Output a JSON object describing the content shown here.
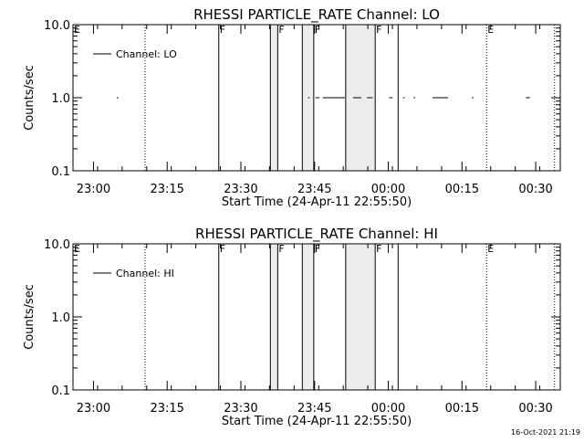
{
  "footer": {
    "timestamp": "16-Oct-2021 21:19"
  },
  "chart_data": [
    {
      "type": "line",
      "title": "RHESSI PARTICLE_RATE Channel: LO",
      "xlabel": "Start Time (24-Apr-11 22:55:50)",
      "ylabel": "Counts/sec",
      "x_ticks": [
        "23:00",
        "23:15",
        "23:30",
        "23:45",
        "00:00",
        "00:15",
        "00:30"
      ],
      "x_range": [
        "22:55:50",
        "00:35:00"
      ],
      "y_ticks": [
        "0.1",
        "1.0",
        "10.0"
      ],
      "ylim": [
        0.1,
        10
      ],
      "y_scale": "log",
      "legend": {
        "entries": [
          "Channel: LO"
        ],
        "position": "top-left"
      },
      "series": [
        {
          "name": "Channel: LO",
          "segments": [
            {
              "x": [
                "23:04:45",
                "23:05:05"
              ],
              "y": 1.0
            },
            {
              "x": [
                "23:43:40",
                "23:44:00"
              ],
              "y": 1.0
            },
            {
              "x": [
                "23:45:10",
                "23:46:00"
              ],
              "y": 1.0
            },
            {
              "x": [
                "23:46:40",
                "23:51:10"
              ],
              "y": 1.0
            },
            {
              "x": [
                "23:52:50",
                "23:54:30"
              ],
              "y": 1.0
            },
            {
              "x": [
                "23:55:40",
                "23:56:50"
              ],
              "y": 1.0
            },
            {
              "x": [
                "00:00:10",
                "00:00:50"
              ],
              "y": 1.0
            },
            {
              "x": [
                "00:03:00",
                "00:03:20"
              ],
              "y": 1.0
            },
            {
              "x": [
                "00:05:10",
                "00:05:30"
              ],
              "y": 1.0
            },
            {
              "x": [
                "00:09:00",
                "00:12:10"
              ],
              "y": 1.0
            },
            {
              "x": [
                "00:17:00",
                "00:17:20"
              ],
              "y": 1.0
            },
            {
              "x": [
                "00:28:00",
                "00:28:50"
              ],
              "y": 1.0
            }
          ]
        }
      ],
      "markers": [
        {
          "time": "23:10:30",
          "label": "",
          "style": "dotted"
        },
        {
          "time": "23:25:30",
          "label": "F",
          "style": "solid"
        },
        {
          "time": "23:36:00",
          "label": "",
          "style": "solid"
        },
        {
          "time": "23:37:30",
          "label": "F",
          "style": "solid"
        },
        {
          "time": "23:42:30",
          "label": "",
          "style": "solid"
        },
        {
          "time": "23:44:50",
          "label": "F",
          "style": "solid"
        },
        {
          "time": "23:51:20",
          "label": "",
          "style": "solid"
        },
        {
          "time": "23:57:20",
          "label": "F",
          "style": "solid"
        },
        {
          "time": "00:02:00",
          "label": "",
          "style": "solid"
        },
        {
          "time": "00:20:00",
          "label": "E",
          "style": "dotted"
        },
        {
          "time": "00:33:50",
          "label": "",
          "style": "dotted"
        }
      ],
      "start_marker": {
        "time": "22:55:50",
        "label": "E"
      },
      "shaded_intervals": [
        [
          "23:36:00",
          "23:37:30"
        ],
        [
          "23:42:30",
          "23:44:50"
        ],
        [
          "23:51:20",
          "23:57:20"
        ]
      ]
    },
    {
      "type": "line",
      "title": "RHESSI PARTICLE_RATE Channel: HI",
      "xlabel": "Start Time (24-Apr-11 22:55:50)",
      "ylabel": "Counts/sec",
      "x_ticks": [
        "23:00",
        "23:15",
        "23:30",
        "23:45",
        "00:00",
        "00:15",
        "00:30"
      ],
      "x_range": [
        "22:55:50",
        "00:35:00"
      ],
      "y_ticks": [
        "0.1",
        "1.0",
        "10.0"
      ],
      "ylim": [
        0.1,
        10
      ],
      "y_scale": "log",
      "legend": {
        "entries": [
          "Channel: HI"
        ],
        "position": "top-left"
      },
      "series": [
        {
          "name": "Channel: HI",
          "segments": []
        }
      ],
      "markers": [
        {
          "time": "23:10:30",
          "label": "",
          "style": "dotted"
        },
        {
          "time": "23:25:30",
          "label": "F",
          "style": "solid"
        },
        {
          "time": "23:36:00",
          "label": "",
          "style": "solid"
        },
        {
          "time": "23:37:30",
          "label": "F",
          "style": "solid"
        },
        {
          "time": "23:42:30",
          "label": "",
          "style": "solid"
        },
        {
          "time": "23:44:50",
          "label": "F",
          "style": "solid"
        },
        {
          "time": "23:51:20",
          "label": "",
          "style": "solid"
        },
        {
          "time": "23:57:20",
          "label": "F",
          "style": "solid"
        },
        {
          "time": "00:02:00",
          "label": "",
          "style": "solid"
        },
        {
          "time": "00:20:00",
          "label": "E",
          "style": "dotted"
        },
        {
          "time": "00:33:50",
          "label": "",
          "style": "dotted"
        }
      ],
      "start_marker": {
        "time": "22:55:50",
        "label": "E"
      },
      "shaded_intervals": [
        [
          "23:36:00",
          "23:37:30"
        ],
        [
          "23:42:30",
          "23:44:50"
        ],
        [
          "23:51:20",
          "23:57:20"
        ]
      ]
    }
  ]
}
